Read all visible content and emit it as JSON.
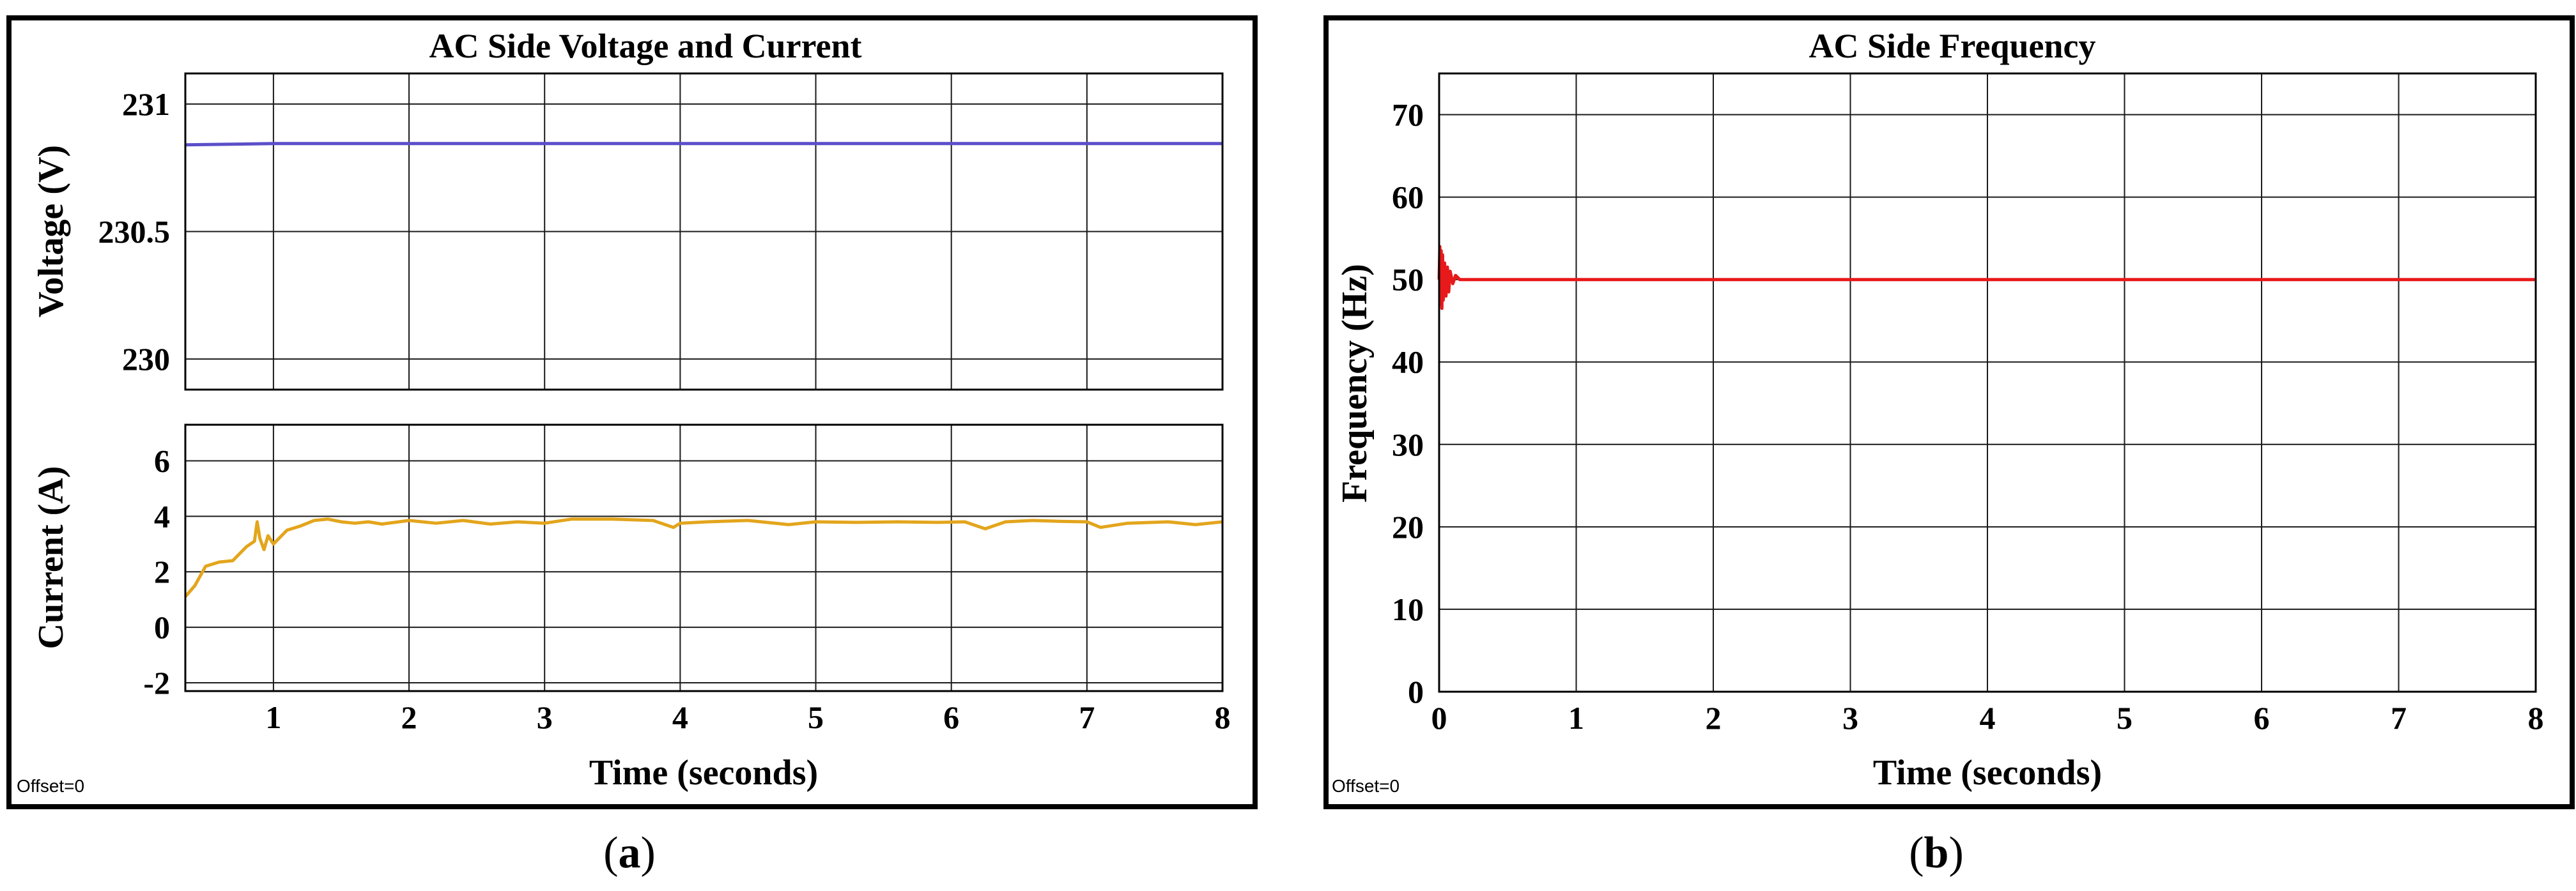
{
  "panels": [
    {
      "id": "a",
      "title": "AC Side Voltage  and Current",
      "caption_letter": "a",
      "offset_label": "Offset=0",
      "xlabel": "Time (seconds)"
    },
    {
      "id": "b",
      "title": "AC Side Frequency",
      "caption_letter": "b",
      "offset_label": "Offset=0",
      "xlabel": "Time (seconds)"
    }
  ],
  "chart_data": [
    {
      "type": "line",
      "panel": "a-top",
      "title": "AC Side Voltage  and Current",
      "ylabel": "Voltage (V)",
      "xlabel": "",
      "xlim": [
        0.35,
        8
      ],
      "ylim": [
        229.88,
        231.12
      ],
      "xticks": [
        1,
        2,
        3,
        4,
        5,
        6,
        7,
        8
      ],
      "xticks_labeled": false,
      "yticks": [
        230,
        230.5,
        231
      ],
      "ytick_labels": [
        "230",
        "230.5",
        "231"
      ],
      "grid": true,
      "series": [
        {
          "color": "#5b4fc9",
          "x": [
            0.35,
            1,
            2,
            3,
            4,
            5,
            6,
            7,
            8
          ],
          "y": [
            230.84,
            230.845,
            230.845,
            230.845,
            230.845,
            230.845,
            230.845,
            230.845,
            230.845
          ]
        }
      ]
    },
    {
      "type": "line",
      "panel": "a-bottom",
      "title": "",
      "ylabel": "Current (A)",
      "xlabel": "Time (seconds)",
      "xlim": [
        0.35,
        8
      ],
      "ylim": [
        -2.3,
        7.3
      ],
      "xticks": [
        1,
        2,
        3,
        4,
        5,
        6,
        7,
        8
      ],
      "xtick_labels": [
        "1",
        "2",
        "3",
        "4",
        "5",
        "6",
        "7",
        "8"
      ],
      "yticks": [
        -2,
        0,
        2,
        4,
        6
      ],
      "ytick_labels": [
        "-2",
        "0",
        "2",
        "4",
        "6"
      ],
      "grid": true,
      "series": [
        {
          "color": "#e3a51c",
          "x": [
            0.35,
            0.42,
            0.5,
            0.6,
            0.7,
            0.8,
            0.86,
            0.88,
            0.9,
            0.93,
            0.96,
            1.0,
            1.1,
            1.2,
            1.3,
            1.4,
            1.5,
            1.6,
            1.7,
            1.8,
            2.0,
            2.2,
            2.4,
            2.6,
            2.8,
            3.0,
            3.2,
            3.5,
            3.8,
            3.95,
            4.0,
            4.2,
            4.5,
            4.8,
            5.0,
            5.3,
            5.6,
            5.9,
            6.1,
            6.25,
            6.4,
            6.6,
            6.8,
            7.0,
            7.1,
            7.3,
            7.6,
            7.8,
            8.0
          ],
          "y": [
            1.1,
            1.5,
            2.2,
            2.35,
            2.4,
            2.9,
            3.1,
            3.8,
            3.2,
            2.8,
            3.3,
            3.0,
            3.5,
            3.65,
            3.85,
            3.9,
            3.8,
            3.75,
            3.8,
            3.72,
            3.85,
            3.75,
            3.85,
            3.72,
            3.8,
            3.75,
            3.9,
            3.9,
            3.85,
            3.6,
            3.75,
            3.8,
            3.85,
            3.7,
            3.8,
            3.78,
            3.8,
            3.78,
            3.8,
            3.55,
            3.8,
            3.85,
            3.82,
            3.8,
            3.6,
            3.75,
            3.8,
            3.7,
            3.8
          ]
        }
      ]
    },
    {
      "type": "line",
      "panel": "b",
      "title": "AC Side Frequency",
      "ylabel": "Frequency (Hz)",
      "xlabel": "Time (seconds)",
      "xlim": [
        0,
        8
      ],
      "ylim": [
        0,
        75
      ],
      "xticks": [
        0,
        1,
        2,
        3,
        4,
        5,
        6,
        7,
        8
      ],
      "xtick_labels": [
        "0",
        "1",
        "2",
        "3",
        "4",
        "5",
        "6",
        "7",
        "8"
      ],
      "yticks": [
        0,
        10,
        20,
        30,
        40,
        50,
        60,
        70
      ],
      "ytick_labels": [
        "0",
        "10",
        "20",
        "30",
        "40",
        "50",
        "60",
        "70"
      ],
      "grid": true,
      "series": [
        {
          "color": "#e8191a",
          "x": [
            0,
            0.005,
            0.01,
            0.015,
            0.02,
            0.025,
            0.03,
            0.04,
            0.05,
            0.06,
            0.07,
            0.08,
            0.1,
            0.12,
            0.15,
            0.2,
            0.3,
            1,
            2,
            3,
            4,
            5,
            6,
            7,
            8
          ],
          "y": [
            50,
            54,
            47,
            53.5,
            46.5,
            53,
            47.5,
            52,
            48,
            51.5,
            48.5,
            51,
            49.5,
            50.5,
            50,
            50,
            50,
            50,
            50,
            50,
            50,
            50,
            50,
            50,
            50
          ]
        }
      ]
    }
  ]
}
